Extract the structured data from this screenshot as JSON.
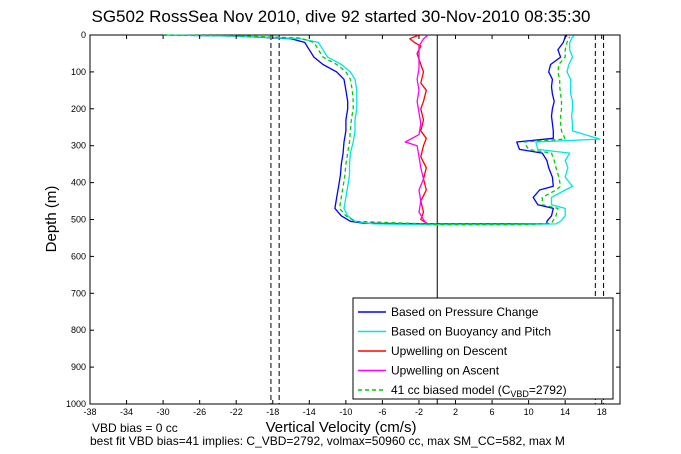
{
  "chart_data": {
    "type": "line",
    "title": "SG502 RossSea Nov 2010, dive 92 started 30-Nov-2010 08:35:30",
    "xlabel": "Vertical Velocity (cm/s)",
    "ylabel": "Depth (m)",
    "xlim": [
      -38,
      20
    ],
    "ylim": [
      1000,
      0
    ],
    "y_reversed": true,
    "xticks": [
      -38,
      -34,
      -30,
      -26,
      -22,
      -18,
      -14,
      -10,
      -6,
      -2,
      2,
      6,
      10,
      14,
      18
    ],
    "yticks": [
      0,
      100,
      200,
      300,
      400,
      500,
      600,
      700,
      800,
      900,
      1000
    ],
    "grid": false,
    "legend_position": "bottom-right",
    "series": [
      {
        "name": "Based on Pressure Change",
        "color": "#0000ff",
        "style": "solid",
        "points": [
          [
            -30,
            0
          ],
          [
            -22,
            3
          ],
          [
            -16,
            10
          ],
          [
            -14.5,
            20
          ],
          [
            -14,
            40
          ],
          [
            -13.5,
            60
          ],
          [
            -12.5,
            80
          ],
          [
            -11,
            100
          ],
          [
            -10.2,
            120
          ],
          [
            -10,
            150
          ],
          [
            -9.8,
            180
          ],
          [
            -9.8,
            200
          ],
          [
            -10,
            230
          ],
          [
            -10,
            260
          ],
          [
            -10.2,
            290
          ],
          [
            -10.3,
            320
          ],
          [
            -10.5,
            350
          ],
          [
            -10.6,
            380
          ],
          [
            -10.8,
            410
          ],
          [
            -11,
            440
          ],
          [
            -11.2,
            470
          ],
          [
            -10.5,
            490
          ],
          [
            -9.5,
            505
          ],
          [
            -8,
            510
          ],
          [
            0,
            512
          ],
          [
            8,
            512
          ],
          [
            12,
            512
          ],
          [
            12,
            505
          ],
          [
            12.5,
            490
          ],
          [
            12.7,
            470
          ],
          [
            11,
            460
          ],
          [
            10.5,
            440
          ],
          [
            11.2,
            420
          ],
          [
            12.7,
            410
          ],
          [
            12.6,
            385
          ],
          [
            12.2,
            360
          ],
          [
            12,
            340
          ],
          [
            11.5,
            320
          ],
          [
            9,
            310
          ],
          [
            8.7,
            290
          ],
          [
            12.7,
            280
          ],
          [
            12.7,
            260
          ],
          [
            12.6,
            240
          ],
          [
            12.5,
            220
          ],
          [
            12.6,
            200
          ],
          [
            12.8,
            180
          ],
          [
            12.6,
            160
          ],
          [
            12.5,
            140
          ],
          [
            12.6,
            120
          ],
          [
            12.2,
            100
          ],
          [
            12.4,
            80
          ],
          [
            13.5,
            60
          ],
          [
            13.2,
            40
          ],
          [
            13.8,
            20
          ],
          [
            14,
            5
          ],
          [
            14.2,
            2
          ]
        ]
      },
      {
        "name": "Based on Buoyancy and Pitch",
        "color": "#00e5e5",
        "style": "solid",
        "points": [
          [
            -30,
            0
          ],
          [
            -22,
            3
          ],
          [
            -15,
            10
          ],
          [
            -13,
            20
          ],
          [
            -12.5,
            40
          ],
          [
            -12,
            60
          ],
          [
            -10.5,
            80
          ],
          [
            -9.5,
            100
          ],
          [
            -9,
            120
          ],
          [
            -8.8,
            150
          ],
          [
            -8.8,
            180
          ],
          [
            -8.8,
            200
          ],
          [
            -9,
            230
          ],
          [
            -9,
            260
          ],
          [
            -9.2,
            290
          ],
          [
            -9.5,
            320
          ],
          [
            -9.6,
            350
          ],
          [
            -9.6,
            380
          ],
          [
            -9.8,
            410
          ],
          [
            -10,
            440
          ],
          [
            -10.2,
            470
          ],
          [
            -9.8,
            490
          ],
          [
            -9,
            505
          ],
          [
            -7,
            512
          ],
          [
            0,
            514
          ],
          [
            8,
            514
          ],
          [
            13,
            512
          ],
          [
            13.5,
            505
          ],
          [
            14,
            490
          ],
          [
            14,
            470
          ],
          [
            12.5,
            460
          ],
          [
            12.5,
            440
          ],
          [
            14,
            420
          ],
          [
            14.8,
            410
          ],
          [
            14,
            385
          ],
          [
            14.3,
            360
          ],
          [
            14,
            340
          ],
          [
            14.5,
            320
          ],
          [
            11,
            310
          ],
          [
            10.8,
            290
          ],
          [
            17.8,
            282
          ],
          [
            14.8,
            260
          ],
          [
            14.8,
            240
          ],
          [
            14.7,
            220
          ],
          [
            14.8,
            200
          ],
          [
            14.8,
            180
          ],
          [
            14.6,
            160
          ],
          [
            14.6,
            140
          ],
          [
            14.6,
            120
          ],
          [
            14.2,
            100
          ],
          [
            14.4,
            80
          ],
          [
            14.8,
            60
          ],
          [
            14.5,
            40
          ],
          [
            14.5,
            20
          ],
          [
            14.8,
            5
          ],
          [
            15,
            2
          ]
        ]
      },
      {
        "name": "Upwelling on Descent",
        "color": "#ff0000",
        "style": "solid",
        "points": [
          [
            -2,
            0
          ],
          [
            -3,
            10
          ],
          [
            -2.5,
            20
          ],
          [
            -1.8,
            30
          ],
          [
            -2.2,
            50
          ],
          [
            -1.8,
            80
          ],
          [
            -1.5,
            100
          ],
          [
            -1.8,
            130
          ],
          [
            -1.2,
            150
          ],
          [
            -1.5,
            180
          ],
          [
            -1.8,
            200
          ],
          [
            -1.5,
            230
          ],
          [
            -1.8,
            260
          ],
          [
            -1.2,
            280
          ],
          [
            -1.5,
            300
          ],
          [
            -1.8,
            330
          ],
          [
            -1.2,
            360
          ],
          [
            -1.5,
            390
          ],
          [
            -1.2,
            420
          ],
          [
            -1.8,
            450
          ],
          [
            -1.5,
            480
          ],
          [
            -1.8,
            500
          ],
          [
            -1,
            512
          ]
        ]
      },
      {
        "name": "Upwelling on Ascent",
        "color": "#ff00ff",
        "style": "solid",
        "points": [
          [
            -1.2,
            512
          ],
          [
            -1.5,
            500
          ],
          [
            -2,
            480
          ],
          [
            -1.8,
            450
          ],
          [
            -2,
            420
          ],
          [
            -1.5,
            390
          ],
          [
            -1.8,
            360
          ],
          [
            -2,
            330
          ],
          [
            -2.2,
            300
          ],
          [
            -3.5,
            290
          ],
          [
            -2,
            270
          ],
          [
            -1.8,
            240
          ],
          [
            -2,
            210
          ],
          [
            -2.2,
            180
          ],
          [
            -2,
            150
          ],
          [
            -2.2,
            120
          ],
          [
            -2,
            90
          ],
          [
            -2,
            60
          ],
          [
            -2,
            30
          ],
          [
            -1.5,
            10
          ],
          [
            -1,
            0
          ]
        ]
      },
      {
        "name": "41 cc biased model (C_VBD=2792)",
        "color": "#00cc00",
        "style": "dashed",
        "points": [
          [
            -30,
            0
          ],
          [
            -22,
            2
          ],
          [
            -15,
            8
          ],
          [
            -13.5,
            20
          ],
          [
            -13,
            40
          ],
          [
            -12.5,
            60
          ],
          [
            -11,
            80
          ],
          [
            -10,
            100
          ],
          [
            -9.5,
            120
          ],
          [
            -9.3,
            150
          ],
          [
            -9.2,
            180
          ],
          [
            -9.2,
            200
          ],
          [
            -9.4,
            230
          ],
          [
            -9.5,
            260
          ],
          [
            -9.6,
            290
          ],
          [
            -9.8,
            320
          ],
          [
            -10,
            350
          ],
          [
            -10.1,
            380
          ],
          [
            -10.3,
            410
          ],
          [
            -10.5,
            440
          ],
          [
            -10.7,
            470
          ],
          [
            -10,
            490
          ],
          [
            -9,
            505
          ],
          [
            0,
            513
          ],
          [
            10,
            513
          ],
          [
            12.5,
            510
          ],
          [
            13,
            490
          ],
          [
            13.2,
            470
          ],
          [
            11.5,
            460
          ],
          [
            11.5,
            440
          ],
          [
            13,
            420
          ],
          [
            13.5,
            410
          ],
          [
            13.3,
            385
          ],
          [
            13,
            360
          ],
          [
            12.8,
            340
          ],
          [
            12.5,
            320
          ],
          [
            10,
            310
          ],
          [
            9.5,
            290
          ],
          [
            14,
            282
          ],
          [
            13.6,
            260
          ],
          [
            13.5,
            240
          ],
          [
            13.5,
            220
          ],
          [
            13.6,
            200
          ],
          [
            13.6,
            180
          ],
          [
            13.5,
            160
          ],
          [
            13.4,
            140
          ],
          [
            13.4,
            120
          ],
          [
            13.2,
            100
          ],
          [
            13.3,
            80
          ],
          [
            14,
            60
          ],
          [
            14,
            40
          ],
          [
            14.2,
            20
          ],
          [
            14.5,
            5
          ]
        ]
      }
    ],
    "reference_lines": [
      {
        "type": "vertical",
        "x": 0,
        "style": "solid",
        "color": "#000000"
      },
      {
        "type": "vertical",
        "x": -17.3,
        "style": "dashed",
        "color": "#000000"
      },
      {
        "type": "vertical",
        "x": -18.2,
        "style": "dashed",
        "color": "#000000"
      },
      {
        "type": "vertical",
        "x": 17.3,
        "style": "dashed",
        "color": "#000000"
      },
      {
        "type": "vertical",
        "x": 18.2,
        "style": "dashed",
        "color": "#000000"
      }
    ],
    "legend": [
      {
        "label": "Based on Pressure Change",
        "color": "#0000ff",
        "style": "solid"
      },
      {
        "label": "Based on Buoyancy and Pitch",
        "color": "#00e5e5",
        "style": "solid"
      },
      {
        "label": "Upwelling on Descent",
        "color": "#ff0000",
        "style": "solid"
      },
      {
        "label": "Upwelling on Ascent",
        "color": "#ff00ff",
        "style": "solid"
      },
      {
        "label": "41 cc biased model (C",
        "sub": "VBD",
        "tail": "=2792)",
        "color": "#00cc00",
        "style": "dashed"
      }
    ]
  },
  "footer": {
    "line1": "VBD bias = 0 cc",
    "line2": "best fit VBD bias=41 implies: C_VBD=2792, volmax=50960 cc, max SM_CC=582, max M"
  }
}
